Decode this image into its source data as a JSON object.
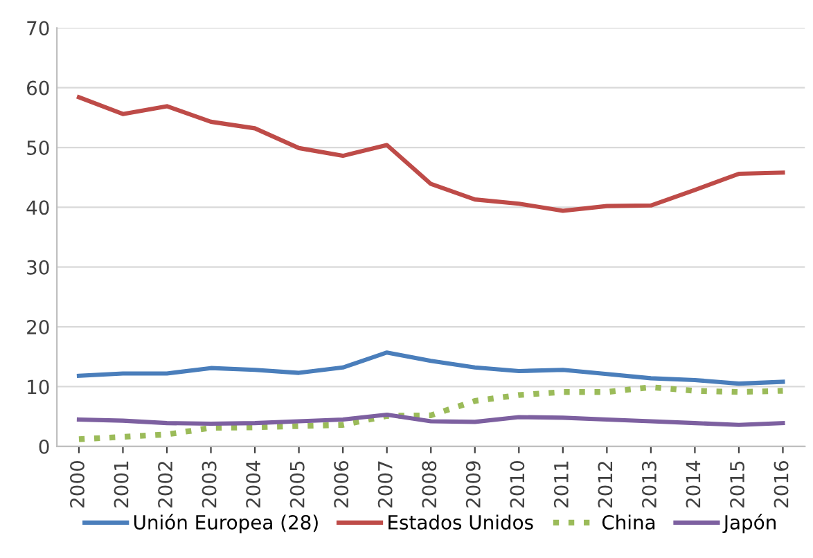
{
  "chart_data": {
    "type": "line",
    "categories": [
      "2000",
      "2001",
      "2002",
      "2003",
      "2004",
      "2005",
      "2006",
      "2007",
      "2008",
      "2009",
      "2010",
      "2011",
      "2012",
      "2013",
      "2014",
      "2015",
      "2016"
    ],
    "series": [
      {
        "name": "Unión Europea (28)",
        "color": "#4a7ebb",
        "line_style": "solid",
        "values": [
          11.8,
          12.2,
          12.2,
          13.1,
          12.8,
          12.3,
          13.2,
          15.7,
          14.3,
          13.2,
          12.6,
          12.8,
          12.1,
          11.4,
          11.1,
          10.5,
          10.8
        ]
      },
      {
        "name": "Estados Unidos",
        "color": "#be4b48",
        "line_style": "solid",
        "values": [
          58.4,
          55.6,
          56.9,
          54.3,
          53.2,
          49.9,
          48.6,
          50.4,
          43.9,
          41.3,
          40.6,
          39.4,
          40.2,
          40.3,
          42.9,
          45.6,
          45.8
        ]
      },
      {
        "name": "China",
        "color": "#9bbb59",
        "line_style": "dotted",
        "values": [
          1.2,
          1.6,
          2.0,
          3.1,
          3.2,
          3.4,
          3.6,
          5.1,
          5.2,
          7.6,
          8.6,
          9.1,
          9.1,
          9.9,
          9.3,
          9.1,
          9.3
        ]
      },
      {
        "name": "Japón",
        "color": "#7d60a0",
        "line_style": "solid",
        "values": [
          4.5,
          4.3,
          3.9,
          3.8,
          3.9,
          4.2,
          4.5,
          5.3,
          4.2,
          4.1,
          4.9,
          4.8,
          4.5,
          4.2,
          3.9,
          3.6,
          3.9
        ]
      }
    ],
    "ylim": [
      0,
      70
    ],
    "yticks": [
      0,
      10,
      20,
      30,
      40,
      50,
      60,
      70
    ],
    "grid": "y",
    "legend": "bottom",
    "marker": "none"
  }
}
